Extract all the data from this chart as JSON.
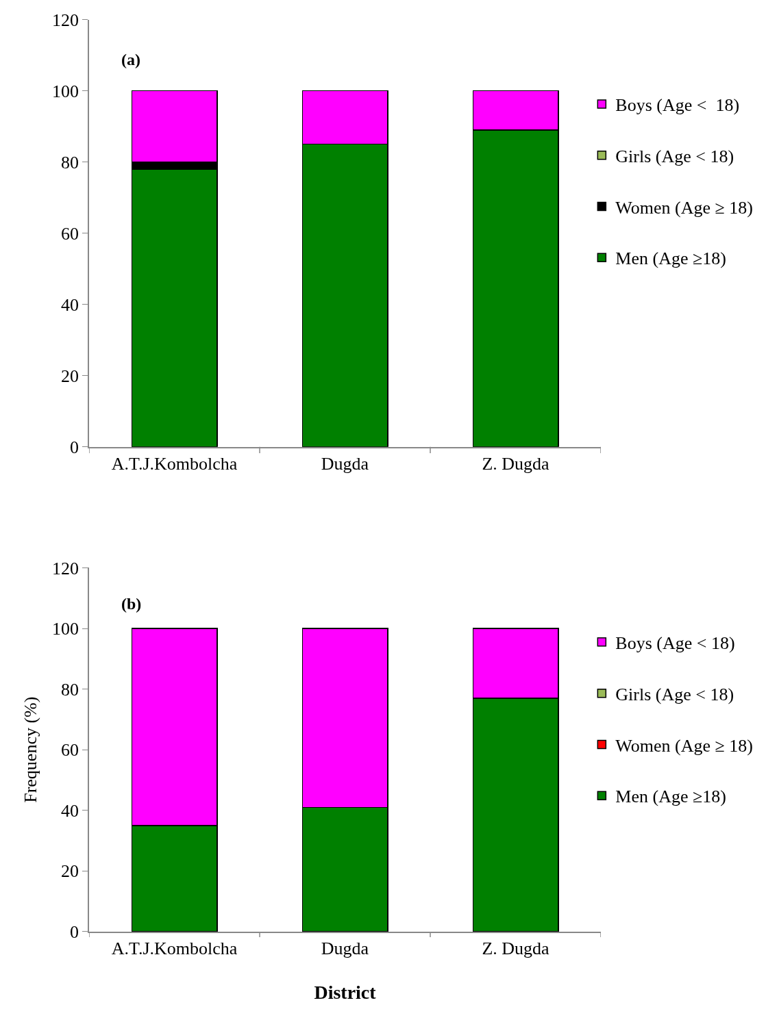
{
  "chart_data": [
    {
      "type": "bar",
      "stacked": true,
      "annotations": [
        "(a)"
      ],
      "categories": [
        "A.T.J.Kombolcha",
        "Dugda",
        "Z. Dugda"
      ],
      "ylim": [
        0,
        120
      ],
      "yticks": [
        0,
        20,
        40,
        60,
        80,
        100,
        120
      ],
      "legend": "right",
      "series": [
        {
          "name": "Men (Age ≥18)",
          "color": "#008000",
          "values": [
            78,
            85,
            89
          ]
        },
        {
          "name": "Women (Age ≥ 18)",
          "color": "#000000",
          "values": [
            2,
            0,
            0
          ]
        },
        {
          "name": "Girls (Age < 18)",
          "color": "#9bbb59",
          "values": [
            0,
            0,
            0
          ]
        },
        {
          "name": "Boys (Age <  18)",
          "color": "#ff00ff",
          "values": [
            20,
            15,
            11
          ]
        }
      ]
    },
    {
      "type": "bar",
      "stacked": true,
      "annotations": [
        "(b)"
      ],
      "xlabel": "District",
      "ylabel": "Frequency (%)",
      "categories": [
        "A.T.J.Kombolcha",
        "Dugda",
        "Z. Dugda"
      ],
      "ylim": [
        0,
        120
      ],
      "yticks": [
        0,
        20,
        40,
        60,
        80,
        100,
        120
      ],
      "legend": "right",
      "series": [
        {
          "name": "Men (Age ≥18)",
          "color": "#008000",
          "values": [
            35,
            41,
            77
          ]
        },
        {
          "name": "Women (Age ≥ 18)",
          "color": "#ff0000",
          "values": [
            0,
            0,
            0
          ]
        },
        {
          "name": "Girls (Age < 18)",
          "color": "#9bbb59",
          "values": [
            0,
            0,
            0
          ]
        },
        {
          "name": "Boys (Age < 18)",
          "color": "#ff00ff",
          "values": [
            65,
            59,
            23
          ]
        }
      ]
    }
  ]
}
